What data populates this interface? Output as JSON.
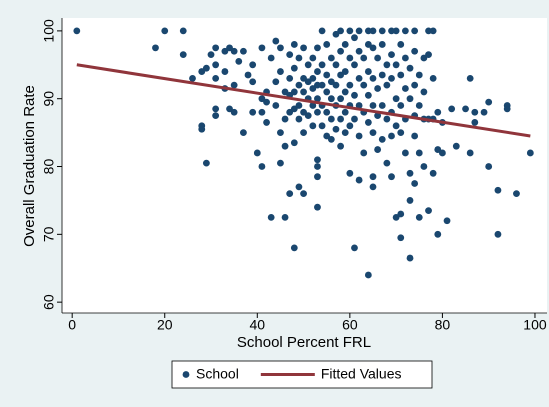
{
  "chart_data": {
    "type": "scatter",
    "x_label": "School Percent FRL",
    "y_label": "Overall Graduation Rate",
    "xlim": [
      -2.2,
      102.6
    ],
    "ylim": [
      58.4,
      101.9
    ],
    "xticks": [
      0,
      20,
      40,
      60,
      80,
      100
    ],
    "yticks": [
      60,
      70,
      80,
      90,
      100
    ],
    "grid": false,
    "legend": "bottom",
    "series": [
      {
        "name": "School",
        "type": "scatter",
        "color": "#1a476f",
        "x": [
          1,
          20,
          24,
          18,
          24,
          26,
          28,
          29,
          28,
          28,
          29,
          30,
          31,
          31,
          31,
          31,
          31,
          33,
          33,
          33,
          34,
          34,
          35,
          35,
          35,
          36,
          37,
          37,
          38,
          39,
          39,
          39,
          40,
          41,
          41,
          41,
          41,
          42,
          42,
          42,
          43,
          43,
          44,
          44,
          44,
          45,
          45,
          45,
          45,
          46,
          46,
          46,
          46,
          47,
          47,
          47,
          47,
          47,
          48,
          48,
          48,
          48,
          48,
          48,
          49,
          49,
          49,
          49,
          49,
          50,
          50,
          50,
          50,
          50,
          50,
          51,
          51,
          51,
          51,
          52,
          52,
          52,
          52,
          52,
          53,
          53,
          53,
          53,
          53,
          53,
          53,
          53,
          53,
          54,
          54,
          54,
          54,
          54,
          55,
          55,
          55,
          55,
          55,
          56,
          56,
          56,
          56,
          56,
          57,
          57,
          57,
          57,
          57,
          58,
          58,
          58,
          58,
          58,
          58,
          59,
          59,
          59,
          59,
          59,
          60,
          60,
          60,
          60,
          60,
          60,
          61,
          61,
          61,
          61,
          61,
          62,
          62,
          62,
          62,
          62,
          62,
          63,
          63,
          63,
          63,
          64,
          64,
          64,
          64,
          64,
          64,
          65,
          65,
          65,
          65,
          65,
          65,
          65,
          66,
          66,
          66,
          66,
          67,
          67,
          67,
          67,
          67,
          68,
          68,
          68,
          68,
          69,
          69,
          69,
          69,
          69,
          69,
          70,
          70,
          70,
          70,
          70,
          71,
          71,
          71,
          71,
          71,
          71,
          72,
          72,
          72,
          72,
          72,
          73,
          73,
          73,
          73,
          73,
          74,
          74,
          74,
          74,
          74,
          74,
          75,
          75,
          75,
          75,
          76,
          76,
          76,
          76,
          77,
          77,
          77,
          77,
          78,
          78,
          78,
          78,
          79,
          79,
          79,
          80,
          80,
          81,
          82,
          83,
          85,
          86,
          86,
          87,
          87,
          89,
          90,
          90,
          92,
          92,
          94,
          94,
          96,
          99
        ],
        "values": [
          100,
          100,
          100,
          97.5,
          96.5,
          93,
          94,
          94.5,
          86,
          85.5,
          80.5,
          96.5,
          97.5,
          95,
          93,
          88.5,
          87.5,
          97,
          94,
          91.5,
          97.5,
          88.5,
          97,
          92,
          88,
          95.5,
          97,
          85,
          93.5,
          95,
          92.5,
          88,
          82,
          97.5,
          90,
          88,
          80,
          91,
          89.5,
          86.5,
          96,
          72.5,
          98.5,
          92.5,
          89,
          97.5,
          94,
          85,
          80.5,
          91,
          87,
          83,
          72.5,
          96.5,
          93,
          90.5,
          88,
          76,
          98,
          94.5,
          91,
          88.5,
          83.5,
          68,
          96,
          92,
          89,
          87,
          77,
          97.5,
          93,
          91,
          88,
          85,
          76,
          95,
          92.5,
          90,
          87.5,
          96,
          93,
          91.5,
          89,
          86,
          97.5,
          94,
          92,
          90,
          88,
          81,
          80,
          78.5,
          74,
          100,
          95,
          92,
          89,
          86,
          98,
          93.5,
          91,
          88,
          84.5,
          96,
          92.5,
          90,
          87,
          84,
          99.5,
          95,
          92,
          89,
          85.5,
          100,
          97,
          93.5,
          90,
          87,
          83,
          98,
          94,
          91,
          88,
          85,
          100,
          96,
          92,
          89,
          86,
          79,
          99,
          95,
          90.5,
          87,
          68,
          100,
          97,
          93,
          89,
          84.5,
          78,
          96,
          92,
          88,
          82,
          100,
          98,
          94,
          90.5,
          86.5,
          64,
          100,
          97.5,
          93,
          89,
          85,
          78.5,
          77,
          96,
          91.5,
          87.5,
          82.5,
          100,
          98,
          93.5,
          89,
          84,
          95,
          92,
          87,
          80.5,
          100,
          96.5,
          93,
          88,
          84.5,
          78.5,
          100,
          95,
          90,
          86,
          72.5,
          98,
          93.5,
          89,
          85,
          73,
          69.5,
          100,
          96,
          91.5,
          87,
          82,
          94.5,
          90,
          79,
          75,
          66.5,
          100,
          97,
          92,
          87.5,
          84.5,
          77.5,
          93.5,
          89,
          82,
          72.5,
          96,
          91,
          87,
          80,
          100,
          96.5,
          87,
          73.5,
          100,
          93,
          87,
          79,
          88,
          82.5,
          70,
          86.5,
          82,
          72,
          88.5,
          83,
          88.5,
          93,
          82,
          88,
          86.5,
          88,
          89.5,
          80,
          76.5,
          70,
          89,
          88.5,
          76,
          82
        ]
      },
      {
        "name": "Fitted Values",
        "type": "line",
        "color": "#90353b",
        "x": [
          1,
          99
        ],
        "values": [
          95,
          84.5
        ]
      }
    ]
  }
}
